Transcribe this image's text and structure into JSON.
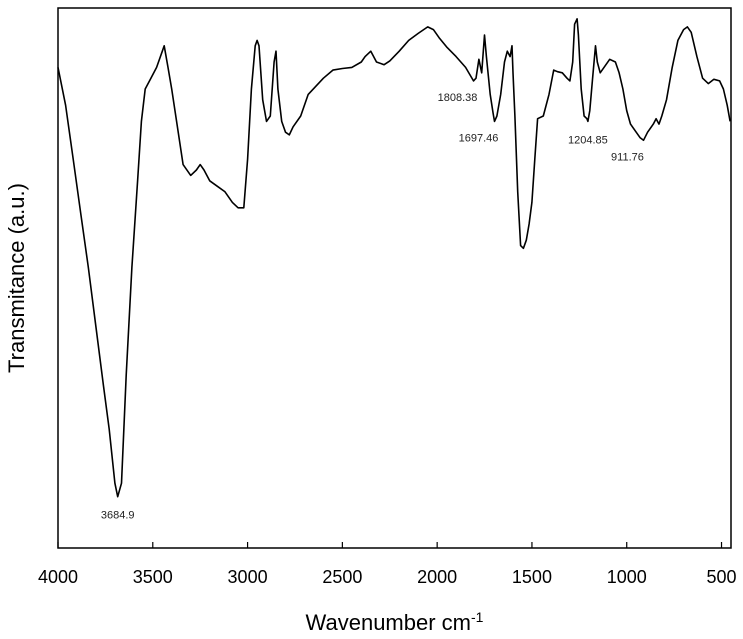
{
  "chart_data": {
    "type": "line",
    "xlabel": "Wavenumber cm",
    "xlabel_superscript": "-1",
    "ylabel": "Transmitance (a.u.)",
    "xlim": [
      4000,
      450
    ],
    "ylim": [
      0,
      100
    ],
    "x_reversed": true,
    "y_ticks_shown": false,
    "grid": false,
    "x_ticks": [
      4000,
      3500,
      3000,
      2500,
      2000,
      1500,
      1000,
      500
    ],
    "x_tick_labels": [
      "4000",
      "3500",
      "3000",
      "2500",
      "2000",
      "1500",
      "1000",
      "500"
    ],
    "series": [
      {
        "color": "#000000",
        "points": [
          [
            4000,
            89
          ],
          [
            3960,
            82
          ],
          [
            3920,
            72
          ],
          [
            3880,
            62
          ],
          [
            3840,
            52
          ],
          [
            3800,
            41
          ],
          [
            3760,
            30
          ],
          [
            3730,
            22
          ],
          [
            3700,
            12
          ],
          [
            3684.9,
            9.5
          ],
          [
            3665,
            12
          ],
          [
            3640,
            32
          ],
          [
            3610,
            52
          ],
          [
            3580,
            68
          ],
          [
            3560,
            79
          ],
          [
            3540,
            85
          ],
          [
            3510,
            87
          ],
          [
            3480,
            89
          ],
          [
            3440,
            93
          ],
          [
            3420,
            89
          ],
          [
            3400,
            85
          ],
          [
            3370,
            78
          ],
          [
            3340,
            71
          ],
          [
            3300,
            69
          ],
          [
            3270,
            70
          ],
          [
            3250,
            71
          ],
          [
            3230,
            70
          ],
          [
            3200,
            68
          ],
          [
            3160,
            67
          ],
          [
            3120,
            66
          ],
          [
            3080,
            64
          ],
          [
            3050,
            63
          ],
          [
            3020,
            63
          ],
          [
            3000,
            72
          ],
          [
            2980,
            85
          ],
          [
            2960,
            93
          ],
          [
            2950,
            94
          ],
          [
            2940,
            93
          ],
          [
            2920,
            83
          ],
          [
            2900,
            79
          ],
          [
            2880,
            80
          ],
          [
            2860,
            90
          ],
          [
            2850,
            92
          ],
          [
            2840,
            85
          ],
          [
            2820,
            79
          ],
          [
            2800,
            77
          ],
          [
            2780,
            76.5
          ],
          [
            2760,
            78
          ],
          [
            2720,
            80
          ],
          [
            2680,
            84
          ],
          [
            2600,
            87
          ],
          [
            2550,
            88.5
          ],
          [
            2500,
            88.8
          ],
          [
            2450,
            89
          ],
          [
            2400,
            90
          ],
          [
            2380,
            91
          ],
          [
            2350,
            92
          ],
          [
            2320,
            90
          ],
          [
            2280,
            89.5
          ],
          [
            2250,
            90.2
          ],
          [
            2200,
            92
          ],
          [
            2150,
            94
          ],
          [
            2100,
            95.3
          ],
          [
            2050,
            96.5
          ],
          [
            2020,
            96
          ],
          [
            1990,
            94.5
          ],
          [
            1950,
            92.8
          ],
          [
            1900,
            91
          ],
          [
            1850,
            89
          ],
          [
            1808.38,
            86.5
          ],
          [
            1795,
            87
          ],
          [
            1780,
            90.5
          ],
          [
            1765,
            88
          ],
          [
            1750,
            95
          ],
          [
            1740,
            91
          ],
          [
            1720,
            84
          ],
          [
            1705,
            80.5
          ],
          [
            1697.46,
            79
          ],
          [
            1685,
            80
          ],
          [
            1665,
            84
          ],
          [
            1645,
            90
          ],
          [
            1630,
            92
          ],
          [
            1615,
            91
          ],
          [
            1605,
            93
          ],
          [
            1600,
            88
          ],
          [
            1590,
            80
          ],
          [
            1575,
            66
          ],
          [
            1560,
            56
          ],
          [
            1545,
            55.5
          ],
          [
            1530,
            57
          ],
          [
            1515,
            60
          ],
          [
            1500,
            64
          ],
          [
            1485,
            72
          ],
          [
            1470,
            79.5
          ],
          [
            1440,
            80
          ],
          [
            1410,
            84
          ],
          [
            1385,
            88.5
          ],
          [
            1365,
            88.2
          ],
          [
            1340,
            88
          ],
          [
            1315,
            87
          ],
          [
            1300,
            86.5
          ],
          [
            1285,
            90
          ],
          [
            1275,
            97
          ],
          [
            1262,
            98
          ],
          [
            1255,
            95
          ],
          [
            1240,
            85
          ],
          [
            1225,
            80
          ],
          [
            1210,
            79.5
          ],
          [
            1204.85,
            79
          ],
          [
            1195,
            81
          ],
          [
            1180,
            87
          ],
          [
            1165,
            93
          ],
          [
            1155,
            90
          ],
          [
            1140,
            88
          ],
          [
            1120,
            89
          ],
          [
            1090,
            90.5
          ],
          [
            1060,
            90
          ],
          [
            1040,
            88
          ],
          [
            1020,
            85
          ],
          [
            1000,
            81
          ],
          [
            980,
            78.5
          ],
          [
            950,
            77
          ],
          [
            930,
            76
          ],
          [
            911.76,
            75.5
          ],
          [
            890,
            77
          ],
          [
            860,
            78.5
          ],
          [
            845,
            79.5
          ],
          [
            830,
            78.5
          ],
          [
            815,
            80
          ],
          [
            790,
            83
          ],
          [
            760,
            89
          ],
          [
            730,
            94
          ],
          [
            700,
            96
          ],
          [
            680,
            96.5
          ],
          [
            660,
            95.5
          ],
          [
            630,
            91
          ],
          [
            600,
            87
          ],
          [
            570,
            86
          ],
          [
            540,
            86.8
          ],
          [
            510,
            86.5
          ],
          [
            490,
            85
          ],
          [
            470,
            82
          ],
          [
            455,
            79
          ]
        ]
      }
    ],
    "annotations": [
      {
        "text": "3684.9",
        "x": 3684.9,
        "y": 9.5,
        "position": "below"
      },
      {
        "text": "1808.38",
        "x": 1808.38,
        "y": 86.5,
        "position": "below-left"
      },
      {
        "text": "1697.46",
        "x": 1697.46,
        "y": 79,
        "position": "below-left"
      },
      {
        "text": "1204.85",
        "x": 1204.85,
        "y": 79,
        "position": "below"
      },
      {
        "text": "911.76",
        "x": 911.76,
        "y": 75.5,
        "position": "below-left"
      }
    ]
  }
}
